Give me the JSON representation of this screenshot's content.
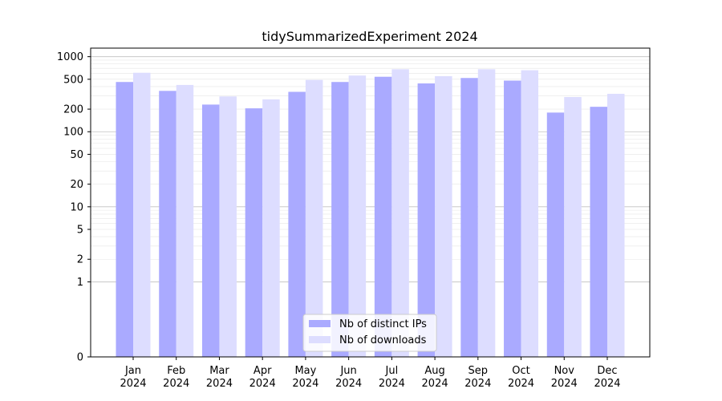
{
  "chart_data": {
    "type": "bar",
    "title": "tidySummarizedExperiment 2024",
    "xlabel": "",
    "ylabel": "",
    "y_scale": "symlog",
    "ylim": [
      0,
      1300
    ],
    "y_ticks": [
      {
        "value": 0,
        "label": "0"
      },
      {
        "value": 1,
        "label": "1"
      },
      {
        "value": 2,
        "label": "2"
      },
      {
        "value": 5,
        "label": "5"
      },
      {
        "value": 10,
        "label": "10"
      },
      {
        "value": 20,
        "label": "20"
      },
      {
        "value": 50,
        "label": "50"
      },
      {
        "value": 100,
        "label": "100"
      },
      {
        "value": 200,
        "label": "200"
      },
      {
        "value": 500,
        "label": "500"
      },
      {
        "value": 1000,
        "label": "1000"
      }
    ],
    "categories": [
      {
        "month": "Jan",
        "year": "2024"
      },
      {
        "month": "Feb",
        "year": "2024"
      },
      {
        "month": "Mar",
        "year": "2024"
      },
      {
        "month": "Apr",
        "year": "2024"
      },
      {
        "month": "May",
        "year": "2024"
      },
      {
        "month": "Jun",
        "year": "2024"
      },
      {
        "month": "Jul",
        "year": "2024"
      },
      {
        "month": "Aug",
        "year": "2024"
      },
      {
        "month": "Sep",
        "year": "2024"
      },
      {
        "month": "Oct",
        "year": "2024"
      },
      {
        "month": "Nov",
        "year": "2024"
      },
      {
        "month": "Dec",
        "year": "2024"
      }
    ],
    "series": [
      {
        "name": "Nb of distinct IPs",
        "color": "#aaaaff",
        "values": [
          460,
          350,
          230,
          205,
          340,
          460,
          540,
          440,
          520,
          480,
          180,
          215
        ]
      },
      {
        "name": "Nb of downloads",
        "color": "#ddddff",
        "values": [
          610,
          420,
          295,
          270,
          490,
          560,
          680,
          550,
          680,
          660,
          290,
          320
        ]
      }
    ],
    "grid": true,
    "legend_position": "lower-center"
  }
}
